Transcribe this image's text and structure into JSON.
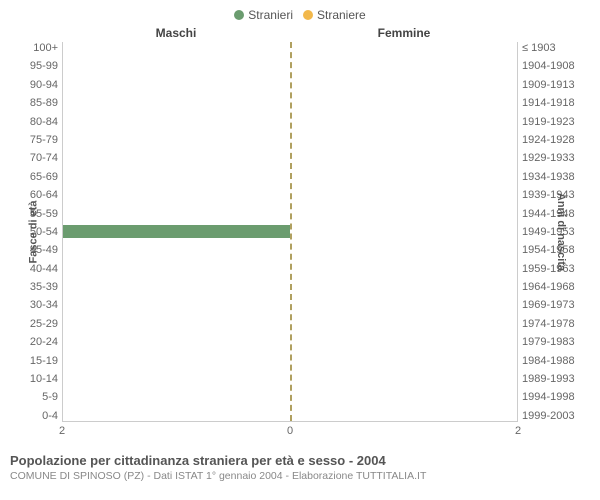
{
  "legend": {
    "male": {
      "label": "Stranieri",
      "color": "#6b9c6f"
    },
    "female": {
      "label": "Straniere",
      "color": "#f2b84b"
    }
  },
  "panels": {
    "male": "Maschi",
    "female": "Femmine"
  },
  "y_axis_left": {
    "label": "Fasce di età",
    "ticks": [
      "100+",
      "95-99",
      "90-94",
      "85-89",
      "80-84",
      "75-79",
      "70-74",
      "65-69",
      "60-64",
      "55-59",
      "50-54",
      "45-49",
      "40-44",
      "35-39",
      "30-34",
      "25-29",
      "20-24",
      "15-19",
      "10-14",
      "5-9",
      "0-4"
    ]
  },
  "y_axis_right": {
    "label": "Anni di nascita",
    "ticks": [
      "≤ 1903",
      "1904-1908",
      "1909-1913",
      "1914-1918",
      "1919-1923",
      "1924-1928",
      "1929-1933",
      "1934-1938",
      "1939-1943",
      "1944-1948",
      "1949-1953",
      "1954-1958",
      "1959-1963",
      "1964-1968",
      "1969-1973",
      "1974-1978",
      "1979-1983",
      "1984-1988",
      "1989-1993",
      "1994-1998",
      "1999-2003"
    ]
  },
  "x_axis": {
    "max": 2,
    "ticks_left": [
      2,
      0
    ],
    "ticks_right": [
      0,
      2
    ]
  },
  "data": {
    "male": [
      0,
      0,
      0,
      0,
      0,
      0,
      0,
      0,
      0,
      0,
      2,
      0,
      0,
      0,
      0,
      0,
      0,
      0,
      0,
      0,
      0
    ],
    "female": [
      0,
      0,
      0,
      0,
      0,
      0,
      0,
      0,
      0,
      0,
      0,
      0,
      0,
      0,
      0,
      0,
      0,
      0,
      0,
      0,
      0
    ]
  },
  "colors": {
    "male_bar": "#6b9c6f",
    "female_bar": "#f2b84b",
    "center_line": "#b0a060",
    "grid": "#cccccc",
    "background": "#ffffff"
  },
  "caption": "Popolazione per cittadinanza straniera per età e sesso - 2004",
  "subcaption": "COMUNE DI SPINOSO (PZ) - Dati ISTAT 1° gennaio 2004 - Elaborazione TUTTITALIA.IT"
}
